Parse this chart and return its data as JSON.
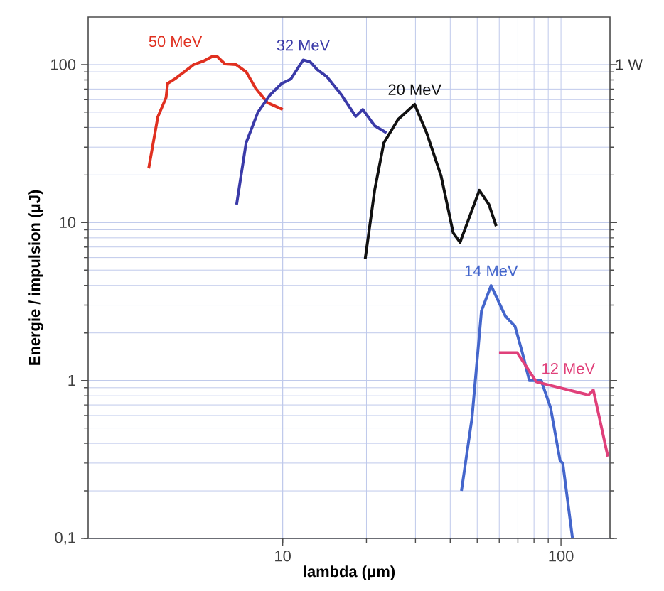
{
  "chart_data": {
    "type": "line",
    "xlabel": "lambda (μm)",
    "ylabel": "Energie / impulsion (μJ)",
    "log": "xy",
    "grid": true,
    "xlim": [
      2,
      150
    ],
    "ylim": [
      0.1,
      200
    ],
    "xticks": [
      10,
      100
    ],
    "yticks": [
      {
        "value": 0.1,
        "label": "0,1"
      },
      1,
      10,
      100
    ],
    "annotations": [
      "1 W"
    ],
    "series": [
      {
        "name": "50 MeV",
        "color": "#e03020",
        "x": [
          3.3,
          3.56,
          3.81,
          3.86,
          4.09,
          4.43,
          4.79,
          5.18,
          5.61,
          5.83,
          6.2,
          6.8,
          7.39,
          7.99,
          8.8,
          10.0
        ],
        "values": [
          22,
          46.7,
          61.7,
          76,
          81,
          90,
          100,
          105,
          113,
          112,
          101,
          100,
          90,
          71,
          57.5,
          52
        ]
      },
      {
        "name": "32 MeV",
        "color": "#3a3aa8",
        "x": [
          6.83,
          7.39,
          8.15,
          8.99,
          9.92,
          10.7,
          11.85,
          12.56,
          13.3,
          14.4,
          16.3,
          18.3,
          19.4,
          21.4,
          23.6
        ],
        "values": [
          13,
          32,
          50,
          64,
          76,
          81,
          107,
          104,
          93,
          84,
          64,
          47,
          52,
          41,
          37
        ]
      },
      {
        "name": "20 MeV",
        "color": "#111111",
        "x": [
          19.8,
          21.4,
          23.1,
          26,
          29.8,
          32.9,
          37.1,
          41.0,
          43.4,
          50.9,
          55.1,
          58.5
        ],
        "values": [
          5.9,
          16,
          32,
          45,
          56,
          37,
          19.7,
          8.6,
          7.5,
          16,
          13,
          9.5
        ]
      },
      {
        "name": "14 MeV",
        "color": "#4466cc",
        "x": [
          43.9,
          47.9,
          51.8,
          56.1,
          63.1,
          68.4,
          72.5,
          77,
          84.9,
          91.8,
          99.3,
          101.5,
          110
        ],
        "values": [
          0.2,
          0.58,
          2.76,
          3.99,
          2.56,
          2.2,
          1.52,
          1.0,
          1.0,
          0.67,
          0.31,
          0.3,
          0.1
        ]
      },
      {
        "name": "12 MeV",
        "color": "#e0407a",
        "x": [
          59.9,
          69.6,
          81.6,
          125.5,
          130.7,
          147.4
        ],
        "values": [
          1.5,
          1.5,
          0.98,
          0.81,
          0.87,
          0.33
        ]
      }
    ]
  }
}
